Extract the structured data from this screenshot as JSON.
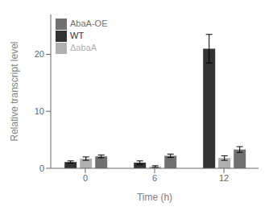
{
  "chart_data": {
    "type": "bar",
    "xlabel": "Time (h)",
    "ylabel": "Relative transcript level",
    "categories": [
      "0",
      "6",
      "12"
    ],
    "series": [
      {
        "name": "WT",
        "color": "#333333",
        "values": [
          1.1,
          1.0,
          21.0
        ],
        "errors": [
          0.2,
          0.3,
          2.5
        ]
      },
      {
        "name": "ΔabaA",
        "color": "#b0b0b0",
        "values": [
          1.7,
          0.3,
          1.8
        ],
        "errors": [
          0.3,
          0.15,
          0.4
        ]
      },
      {
        "name": "AbaA-OE",
        "color": "#707070",
        "values": [
          2.1,
          2.2,
          3.3
        ],
        "errors": [
          0.25,
          0.3,
          0.5
        ]
      }
    ],
    "ylim": [
      0,
      27
    ],
    "yticks": [
      0,
      10,
      20
    ],
    "grid": false,
    "legend": "upper left"
  }
}
